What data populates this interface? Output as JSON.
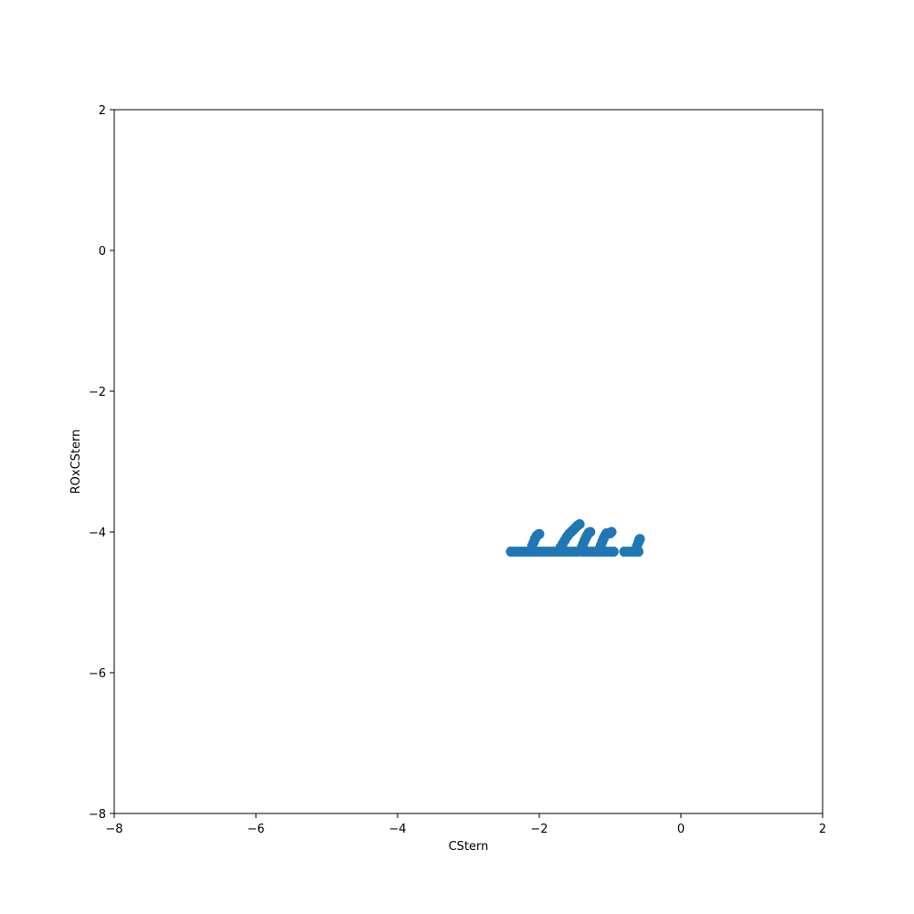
{
  "chart_data": {
    "type": "scatter",
    "title": "",
    "xlabel": "CStern",
    "ylabel": "ROxCStern",
    "xlim": [
      -8,
      2
    ],
    "ylim": [
      -8,
      2
    ],
    "xticks": [
      -8,
      -6,
      -4,
      -2,
      0,
      2
    ],
    "yticks": [
      -8,
      -6,
      -4,
      -2,
      0,
      2
    ],
    "xtick_labels": [
      "−8",
      "−6",
      "−4",
      "−2",
      "0",
      "2"
    ],
    "ytick_labels": [
      "−8",
      "−6",
      "−4",
      "−2",
      "0",
      "2"
    ],
    "grid": false,
    "color": "#1f77b4",
    "series": [
      {
        "x": [
          -2.4,
          -2.35,
          -2.3,
          -2.25,
          -2.2,
          -2.15,
          -2.1,
          -2.05,
          -2.0,
          -1.95,
          -1.9,
          -1.85,
          -1.8,
          -1.75,
          -1.7,
          -1.65,
          -1.6,
          -1.55,
          -1.5,
          -1.45,
          -1.4,
          -1.35,
          -1.3,
          -1.25,
          -1.2,
          -1.15,
          -1.1,
          -1.05,
          -1.0,
          -0.95,
          -0.8,
          -0.75,
          -0.7,
          -0.65,
          -0.6,
          -2.1,
          -2.08,
          -2.06,
          -2.04,
          -2.02,
          -2.0,
          -1.7,
          -1.67,
          -1.64,
          -1.61,
          -1.58,
          -1.55,
          -1.52,
          -1.49,
          -1.46,
          -1.43,
          -1.4,
          -1.38,
          -1.36,
          -1.34,
          -1.32,
          -1.3,
          -1.28,
          -1.15,
          -1.13,
          -1.11,
          -1.09,
          -1.07,
          -1.05,
          -1.0,
          -0.98,
          -0.62,
          -0.6,
          -0.59,
          -0.58
        ],
        "y": [
          -4.28,
          -4.28,
          -4.28,
          -4.28,
          -4.28,
          -4.28,
          -4.28,
          -4.28,
          -4.28,
          -4.28,
          -4.28,
          -4.28,
          -4.28,
          -4.28,
          -4.28,
          -4.28,
          -4.28,
          -4.28,
          -4.28,
          -4.28,
          -4.28,
          -4.28,
          -4.28,
          -4.28,
          -4.28,
          -4.28,
          -4.28,
          -4.28,
          -4.28,
          -4.28,
          -4.28,
          -4.28,
          -4.28,
          -4.28,
          -4.28,
          -4.2,
          -4.15,
          -4.1,
          -4.06,
          -4.04,
          -4.03,
          -4.22,
          -4.17,
          -4.12,
          -4.07,
          -4.03,
          -4.0,
          -3.97,
          -3.94,
          -3.91,
          -3.89,
          -4.22,
          -4.17,
          -4.12,
          -4.08,
          -4.04,
          -4.01,
          -4.0,
          -4.24,
          -4.19,
          -4.14,
          -4.09,
          -4.05,
          -4.02,
          -4.02,
          -4.0,
          -4.2,
          -4.15,
          -4.12,
          -4.1
        ]
      }
    ]
  }
}
